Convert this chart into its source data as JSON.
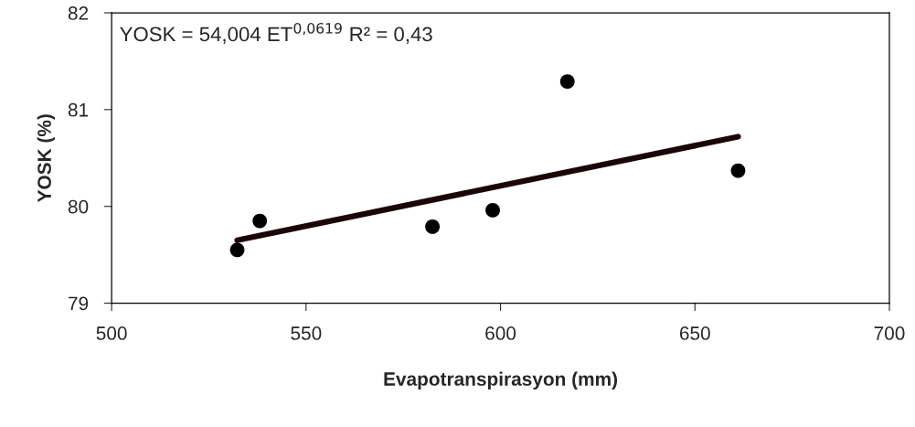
{
  "chart_data": {
    "type": "scatter",
    "xlabel": "Evapotranspirasyon (mm)",
    "ylabel": "YOSK (%)",
    "annotations": [
      "YOSK = 54,004 ET$^{0,0619}$ R² = 0,43"
    ],
    "xlim": [
      500,
      700
    ],
    "xticks": [
      500,
      550,
      600,
      650,
      700
    ],
    "ylim": [
      79,
      82
    ],
    "yticks": [
      79,
      80,
      81,
      82
    ],
    "grid": false,
    "legend": false,
    "series": [
      {
        "marker": "circle",
        "color": "#000000",
        "x": [
          532.3,
          538.1,
          582.5,
          598.0,
          617.2,
          661.1
        ],
        "values": [
          79.55,
          79.85,
          79.79,
          79.96,
          81.29,
          80.37
        ]
      },
      {
        "type": "line",
        "color": "#1a0508",
        "line_style": "solid",
        "x": [
          532.3,
          661.1
        ],
        "values": [
          79.65,
          80.72
        ]
      }
    ]
  }
}
